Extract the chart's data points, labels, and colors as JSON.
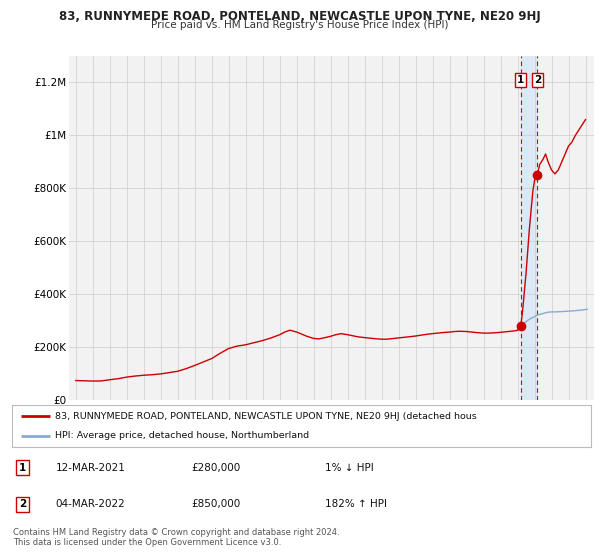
{
  "title": "83, RUNNYMEDE ROAD, PONTELAND, NEWCASTLE UPON TYNE, NE20 9HJ",
  "subtitle": "Price paid vs. HM Land Registry's House Price Index (HPI)",
  "ylim": [
    0,
    1300000
  ],
  "yticks": [
    0,
    200000,
    400000,
    600000,
    800000,
    1000000,
    1200000
  ],
  "ytick_labels": [
    "£0",
    "£200K",
    "£400K",
    "£600K",
    "£800K",
    "£1M",
    "£1.2M"
  ],
  "xlim_start": 1994.6,
  "xlim_end": 2025.5,
  "red_line_color": "#cc0000",
  "blue_line_color": "#88aad0",
  "marker_color": "#cc0000",
  "grid_color": "#cccccc",
  "bg_color": "#ffffff",
  "plot_bg_color": "#f2f2f2",
  "shaded_region_color": "#dce8f5",
  "dashed_line_color": "#cc0000",
  "point1_x": 2021.19,
  "point1_y": 280000,
  "point2_x": 2022.16,
  "point2_y": 850000,
  "legend_line1": "83, RUNNYMEDE ROAD, PONTELAND, NEWCASTLE UPON TYNE, NE20 9HJ (detached hous",
  "legend_line2": "HPI: Average price, detached house, Northumberland",
  "table_row1": [
    "1",
    "12-MAR-2021",
    "£280,000",
    "1% ↓ HPI"
  ],
  "table_row2": [
    "2",
    "04-MAR-2022",
    "£850,000",
    "182% ↑ HPI"
  ],
  "footer1": "Contains HM Land Registry data © Crown copyright and database right 2024.",
  "footer2": "This data is licensed under the Open Government Licence v3.0.",
  "hpi_red": [
    [
      1995.0,
      75000
    ],
    [
      1995.5,
      74000
    ],
    [
      1996.0,
      73000
    ],
    [
      1996.5,
      73500
    ],
    [
      1997.0,
      78000
    ],
    [
      1997.5,
      82000
    ],
    [
      1998.0,
      88000
    ],
    [
      1998.5,
      92000
    ],
    [
      1999.0,
      95000
    ],
    [
      1999.5,
      97000
    ],
    [
      2000.0,
      100000
    ],
    [
      2000.5,
      105000
    ],
    [
      2001.0,
      110000
    ],
    [
      2001.5,
      120000
    ],
    [
      2002.0,
      132000
    ],
    [
      2002.5,
      145000
    ],
    [
      2003.0,
      158000
    ],
    [
      2003.5,
      178000
    ],
    [
      2004.0,
      196000
    ],
    [
      2004.5,
      205000
    ],
    [
      2005.0,
      210000
    ],
    [
      2005.5,
      218000
    ],
    [
      2006.0,
      226000
    ],
    [
      2006.5,
      236000
    ],
    [
      2007.0,
      248000
    ],
    [
      2007.3,
      258000
    ],
    [
      2007.6,
      265000
    ],
    [
      2008.0,
      258000
    ],
    [
      2008.3,
      250000
    ],
    [
      2008.6,
      242000
    ],
    [
      2009.0,
      234000
    ],
    [
      2009.3,
      232000
    ],
    [
      2009.6,
      236000
    ],
    [
      2010.0,
      242000
    ],
    [
      2010.3,
      248000
    ],
    [
      2010.6,
      252000
    ],
    [
      2011.0,
      248000
    ],
    [
      2011.3,
      244000
    ],
    [
      2011.6,
      240000
    ],
    [
      2012.0,
      237000
    ],
    [
      2012.3,
      235000
    ],
    [
      2012.6,
      233000
    ],
    [
      2013.0,
      231000
    ],
    [
      2013.3,
      231000
    ],
    [
      2013.6,
      233000
    ],
    [
      2014.0,
      236000
    ],
    [
      2014.3,
      238000
    ],
    [
      2014.6,
      240000
    ],
    [
      2015.0,
      243000
    ],
    [
      2015.3,
      246000
    ],
    [
      2015.6,
      249000
    ],
    [
      2016.0,
      252000
    ],
    [
      2016.3,
      254000
    ],
    [
      2016.6,
      256000
    ],
    [
      2017.0,
      258000
    ],
    [
      2017.3,
      260000
    ],
    [
      2017.6,
      261000
    ],
    [
      2018.0,
      260000
    ],
    [
      2018.3,
      258000
    ],
    [
      2018.6,
      256000
    ],
    [
      2019.0,
      254000
    ],
    [
      2019.3,
      254000
    ],
    [
      2019.6,
      255000
    ],
    [
      2020.0,
      257000
    ],
    [
      2020.3,
      259000
    ],
    [
      2020.6,
      261000
    ],
    [
      2020.9,
      263000
    ],
    [
      2021.0,
      265000
    ],
    [
      2021.19,
      280000
    ],
    [
      2021.3,
      340000
    ],
    [
      2021.5,
      480000
    ],
    [
      2021.7,
      650000
    ],
    [
      2021.9,
      790000
    ],
    [
      2022.0,
      830000
    ],
    [
      2022.16,
      850000
    ],
    [
      2022.3,
      890000
    ],
    [
      2022.5,
      910000
    ],
    [
      2022.65,
      930000
    ],
    [
      2022.8,
      900000
    ],
    [
      2023.0,
      870000
    ],
    [
      2023.2,
      855000
    ],
    [
      2023.4,
      870000
    ],
    [
      2023.6,
      900000
    ],
    [
      2023.8,
      930000
    ],
    [
      2024.0,
      960000
    ],
    [
      2024.2,
      975000
    ],
    [
      2024.4,
      1000000
    ],
    [
      2024.6,
      1020000
    ],
    [
      2024.8,
      1040000
    ],
    [
      2025.0,
      1060000
    ]
  ],
  "hpi_blue": [
    [
      2021.19,
      280000
    ],
    [
      2021.4,
      292000
    ],
    [
      2021.6,
      302000
    ],
    [
      2021.8,
      310000
    ],
    [
      2022.0,
      316000
    ],
    [
      2022.16,
      322000
    ],
    [
      2022.4,
      326000
    ],
    [
      2022.6,
      330000
    ],
    [
      2022.8,
      333000
    ],
    [
      2023.0,
      334000
    ],
    [
      2023.2,
      334000
    ],
    [
      2023.5,
      335000
    ],
    [
      2023.8,
      336000
    ],
    [
      2024.0,
      337000
    ],
    [
      2024.3,
      338000
    ],
    [
      2024.6,
      340000
    ],
    [
      2024.9,
      342000
    ],
    [
      2025.1,
      344000
    ]
  ]
}
